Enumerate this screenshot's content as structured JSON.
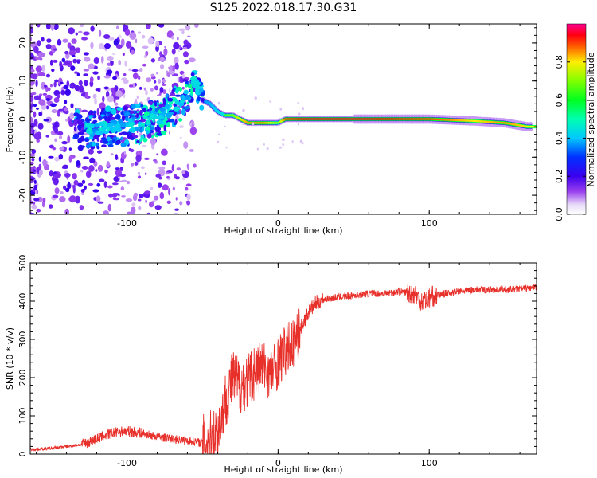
{
  "title": "S125.2022.018.17.30.G31",
  "colors": {
    "snr_line": "#e8302b",
    "axis": "#000000",
    "background": "#ffffff"
  },
  "chart_data": [
    {
      "type": "heatmap",
      "xlabel": "Height of straight line (km)",
      "ylabel": "Frequency (Hz)",
      "xlim": [
        -164,
        171
      ],
      "ylim": [
        -25,
        25
      ],
      "xticks": [
        {
          "value": -100,
          "label": "-100"
        },
        {
          "value": 0,
          "label": "0"
        },
        {
          "value": 100,
          "label": "100"
        }
      ],
      "yticks": [
        {
          "value": -20,
          "label": "-20"
        },
        {
          "value": -10,
          "label": "-10"
        },
        {
          "value": 0,
          "label": "0"
        },
        {
          "value": 10,
          "label": "10"
        },
        {
          "value": 20,
          "label": "20"
        }
      ],
      "colorbar": {
        "label": "Normalized spectral amplitude",
        "range": [
          0,
          1
        ],
        "ticks": [
          {
            "value": 0.0,
            "label": "0.0"
          },
          {
            "value": 0.2,
            "label": "0.2"
          },
          {
            "value": 0.4,
            "label": "0.4"
          },
          {
            "value": 0.6,
            "label": "0.6"
          },
          {
            "value": 0.8,
            "label": "0.8"
          }
        ]
      },
      "ridge": {
        "x": [
          -130,
          -120,
          -110,
          -100,
          -90,
          -80,
          -70,
          -60,
          -55,
          -50,
          -45,
          -40,
          -35,
          -30,
          -25,
          -20,
          -10,
          -5,
          0,
          5,
          20,
          60,
          100,
          130,
          150,
          165
        ],
        "freq": [
          -3,
          -3,
          -2,
          -2,
          -1,
          0,
          3,
          6,
          10,
          5,
          4,
          2,
          1,
          1,
          0,
          -1,
          -1,
          -1,
          -1,
          0,
          0,
          0,
          0,
          -0.5,
          -1,
          -2
        ],
        "amplitude": [
          0.3,
          0.45,
          0.4,
          0.45,
          0.5,
          0.55,
          0.6,
          0.65,
          0.6,
          0.5,
          0.55,
          0.6,
          0.65,
          0.7,
          0.8,
          0.85,
          0.85,
          0.8,
          0.7,
          0.9,
          0.95,
          0.95,
          0.9,
          0.8,
          0.85,
          0.8
        ]
      }
    },
    {
      "type": "line",
      "xlabel": "Height of straight line (km)",
      "ylabel": "SNR (10 * v/v)",
      "xlim": [
        -164,
        171
      ],
      "ylim": [
        0,
        500
      ],
      "xticks": [
        {
          "value": -100,
          "label": "-100"
        },
        {
          "value": 0,
          "label": "0"
        },
        {
          "value": 100,
          "label": "100"
        }
      ],
      "yticks": [
        {
          "value": 0,
          "label": "0"
        },
        {
          "value": 100,
          "label": "100"
        },
        {
          "value": 200,
          "label": "200"
        },
        {
          "value": 300,
          "label": "300"
        },
        {
          "value": 400,
          "label": "400"
        },
        {
          "value": 500,
          "label": "500"
        }
      ],
      "series": [
        {
          "x": [
            -164,
            -150,
            -140,
            -130,
            -120,
            -110,
            -100,
            -90,
            -80,
            -70,
            -60,
            -50,
            -45,
            -40,
            -35,
            -30,
            -25,
            -20,
            -15,
            -10,
            -5,
            0,
            5,
            10,
            15,
            20,
            25,
            30,
            40,
            50,
            60,
            70,
            80,
            90,
            95,
            100,
            105,
            110,
            120,
            130,
            140,
            150,
            160,
            171
          ],
          "y": [
            12,
            15,
            20,
            25,
            40,
            55,
            60,
            55,
            45,
            40,
            35,
            30,
            40,
            60,
            140,
            200,
            180,
            190,
            220,
            230,
            210,
            240,
            270,
            290,
            330,
            370,
            395,
            405,
            410,
            415,
            420,
            420,
            425,
            420,
            400,
            410,
            415,
            420,
            425,
            430,
            430,
            430,
            432,
            435
          ]
        }
      ]
    }
  ]
}
